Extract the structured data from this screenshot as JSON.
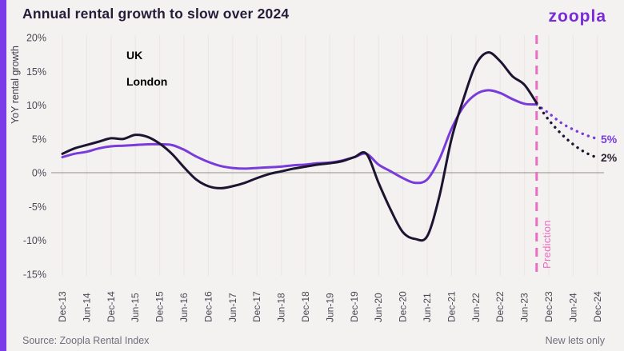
{
  "header": {
    "title": "Annual rental growth to slow over 2024",
    "logo": "zoopla"
  },
  "footer": {
    "source": "Source: Zoopla Rental Index",
    "note": "New lets only"
  },
  "colors": {
    "background": "#F4F2F0",
    "accent_strip": "#7B3BE8",
    "uk_line": "#7A3BDB",
    "london_line": "#1C1430",
    "prediction_pink": "#EC6BC4",
    "grid": "#EAE7E4",
    "zero_line": "#B3AFAB",
    "tick_text": "#4B4754"
  },
  "chart_data": {
    "type": "line",
    "title": "Annual rental growth to slow over 2024",
    "ylabel": "YoY rental growth",
    "xlabel": "",
    "ylim": [
      -15,
      20
    ],
    "grid": "vertical-only-plus-zero-line",
    "legend_position": "top-left-inside",
    "y_ticks": [
      20,
      15,
      10,
      5,
      0,
      -5,
      -10,
      -15
    ],
    "y_tick_labels": [
      "20%",
      "15%",
      "10%",
      "5%",
      "0%",
      "-5%",
      "-10%",
      "-15%"
    ],
    "x_tick_labels": [
      "Dec-13",
      "Jun-14",
      "Dec-14",
      "Jun-15",
      "Dec-15",
      "Jun-16",
      "Dec-16",
      "Jun-17",
      "Dec-17",
      "Jun-18",
      "Dec-18",
      "Jun-19",
      "Dec-19",
      "Jun-20",
      "Dec-20",
      "Jun-21",
      "Dec-21",
      "Jun-22",
      "Dec-22",
      "Jun-23",
      "Dec-23",
      "Jun-24",
      "Dec-24"
    ],
    "prediction_label": "Prediction",
    "prediction_start": "Sep-23",
    "series": [
      {
        "name": "UK",
        "color": "#7A3BDB",
        "style": "solid",
        "dates": [
          "Dec-13",
          "Mar-14",
          "Jun-14",
          "Sep-14",
          "Dec-14",
          "Mar-15",
          "Jun-15",
          "Sep-15",
          "Dec-15",
          "Mar-16",
          "Jun-16",
          "Sep-16",
          "Dec-16",
          "Mar-17",
          "Jun-17",
          "Sep-17",
          "Dec-17",
          "Mar-18",
          "Jun-18",
          "Sep-18",
          "Dec-18",
          "Mar-19",
          "Jun-19",
          "Sep-19",
          "Dec-19",
          "Mar-20",
          "Jun-20",
          "Sep-20",
          "Dec-20",
          "Mar-21",
          "Jun-21",
          "Sep-21",
          "Dec-21",
          "Mar-22",
          "Jun-22",
          "Sep-22",
          "Dec-22",
          "Mar-23",
          "Jun-23",
          "Sep-23"
        ],
        "values": [
          2.3,
          2.8,
          3.1,
          3.6,
          3.9,
          4.0,
          4.1,
          4.2,
          4.2,
          4.1,
          3.4,
          2.4,
          1.6,
          1.0,
          0.7,
          0.6,
          0.7,
          0.8,
          0.9,
          1.1,
          1.2,
          1.4,
          1.5,
          1.8,
          2.3,
          2.8,
          1.2,
          0.2,
          -0.8,
          -1.5,
          -1.0,
          2.0,
          6.5,
          9.8,
          11.6,
          12.2,
          11.8,
          10.9,
          10.2,
          10.1
        ]
      },
      {
        "name": "London",
        "color": "#1C1430",
        "style": "solid",
        "dates": [
          "Dec-13",
          "Mar-14",
          "Jun-14",
          "Sep-14",
          "Dec-14",
          "Mar-15",
          "Jun-15",
          "Sep-15",
          "Dec-15",
          "Mar-16",
          "Jun-16",
          "Sep-16",
          "Dec-16",
          "Mar-17",
          "Jun-17",
          "Sep-17",
          "Dec-17",
          "Mar-18",
          "Jun-18",
          "Sep-18",
          "Dec-18",
          "Mar-19",
          "Jun-19",
          "Sep-19",
          "Dec-19",
          "Mar-20",
          "Jun-20",
          "Sep-20",
          "Dec-20",
          "Mar-21",
          "Jun-21",
          "Sep-21",
          "Dec-21",
          "Mar-22",
          "Jun-22",
          "Sep-22",
          "Dec-22",
          "Mar-23",
          "Jun-23",
          "Sep-23"
        ],
        "values": [
          2.8,
          3.6,
          4.1,
          4.6,
          5.1,
          5.0,
          5.6,
          5.3,
          4.3,
          2.8,
          0.8,
          -1.0,
          -2.0,
          -2.3,
          -2.0,
          -1.5,
          -0.8,
          -0.2,
          0.2,
          0.6,
          0.9,
          1.2,
          1.4,
          1.7,
          2.3,
          2.8,
          -1.5,
          -5.5,
          -8.8,
          -9.8,
          -9.4,
          -3.5,
          5.0,
          11.0,
          16.0,
          17.8,
          16.5,
          14.3,
          13.0,
          10.3
        ]
      },
      {
        "name": "UK prediction",
        "color": "#7A3BDB",
        "style": "dotted",
        "end_label": "5%",
        "dates": [
          "Sep-23",
          "Dec-23",
          "Mar-24",
          "Jun-24",
          "Sep-24",
          "Dec-24"
        ],
        "values": [
          10.1,
          8.8,
          7.4,
          6.4,
          5.6,
          5.0
        ]
      },
      {
        "name": "London prediction",
        "color": "#1C1430",
        "style": "dotted",
        "end_label": "2%",
        "dates": [
          "Sep-23",
          "Dec-23",
          "Mar-24",
          "Jun-24",
          "Sep-24",
          "Dec-24"
        ],
        "values": [
          10.3,
          7.8,
          5.8,
          4.2,
          3.0,
          2.2
        ]
      }
    ]
  }
}
